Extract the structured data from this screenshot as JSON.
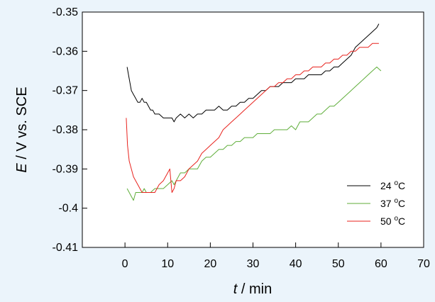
{
  "chart_data": {
    "type": "line",
    "xlabel": {
      "var": "t",
      "rest": " / min"
    },
    "ylabel": {
      "var": "E",
      "rest": " / V vs. SCE"
    },
    "xlim": [
      -10,
      70
    ],
    "ylim": [
      -0.41,
      -0.35
    ],
    "xticks": [
      0,
      10,
      20,
      30,
      40,
      50,
      60,
      70
    ],
    "yticks": [
      -0.41,
      -0.4,
      -0.39,
      -0.38,
      -0.37,
      -0.36,
      -0.35
    ],
    "grid": false,
    "legend_position": "lower-right",
    "series": [
      {
        "name": "24 °C",
        "name_num": "24",
        "name_unit": "C",
        "color": "#000000",
        "x": [
          0.5,
          1,
          1.5,
          2,
          2.5,
          3,
          3.5,
          4,
          4.5,
          5,
          5.5,
          6,
          6.5,
          7,
          8,
          9,
          10,
          11,
          11.5,
          12,
          13,
          14,
          15,
          16,
          17,
          18,
          19,
          20,
          21,
          22,
          23,
          24,
          25,
          26,
          27,
          28,
          29,
          30,
          31,
          32,
          33,
          34,
          35,
          36,
          37,
          38,
          39,
          40,
          41,
          42,
          43,
          44,
          45,
          46,
          47,
          48,
          49,
          50,
          51,
          52,
          53,
          54,
          55,
          56,
          57,
          58,
          59,
          59.5
        ],
        "values": [
          -0.364,
          -0.367,
          -0.37,
          -0.371,
          -0.372,
          -0.373,
          -0.373,
          -0.372,
          -0.373,
          -0.373,
          -0.374,
          -0.375,
          -0.375,
          -0.376,
          -0.376,
          -0.377,
          -0.377,
          -0.377,
          -0.378,
          -0.377,
          -0.376,
          -0.377,
          -0.376,
          -0.377,
          -0.376,
          -0.376,
          -0.375,
          -0.375,
          -0.375,
          -0.374,
          -0.375,
          -0.375,
          -0.374,
          -0.374,
          -0.373,
          -0.373,
          -0.372,
          -0.372,
          -0.371,
          -0.37,
          -0.37,
          -0.369,
          -0.369,
          -0.369,
          -0.368,
          -0.368,
          -0.368,
          -0.367,
          -0.367,
          -0.367,
          -0.366,
          -0.366,
          -0.366,
          -0.366,
          -0.365,
          -0.365,
          -0.364,
          -0.364,
          -0.363,
          -0.362,
          -0.361,
          -0.359,
          -0.358,
          -0.357,
          -0.356,
          -0.355,
          -0.354,
          -0.353
        ]
      },
      {
        "name": "37 °C",
        "name_num": "37",
        "name_unit": "C",
        "color": "#5fae3a",
        "x": [
          0.5,
          1,
          1.5,
          2,
          2.5,
          3,
          3.5,
          4,
          4.5,
          5,
          5.5,
          6,
          7,
          8,
          9,
          10,
          11,
          11.5,
          12,
          13,
          14,
          15,
          16,
          17,
          18,
          19,
          20,
          21,
          22,
          23,
          24,
          25,
          26,
          27,
          28,
          29,
          30,
          31,
          32,
          33,
          34,
          35,
          36,
          37,
          38,
          39,
          40,
          41,
          42,
          43,
          44,
          45,
          46,
          47,
          48,
          49,
          50,
          51,
          52,
          53,
          54,
          55,
          56,
          57,
          58,
          59,
          60
        ],
        "values": [
          -0.395,
          -0.396,
          -0.397,
          -0.398,
          -0.396,
          -0.396,
          -0.396,
          -0.396,
          -0.395,
          -0.396,
          -0.396,
          -0.396,
          -0.395,
          -0.395,
          -0.395,
          -0.394,
          -0.393,
          -0.394,
          -0.393,
          -0.391,
          -0.391,
          -0.39,
          -0.39,
          -0.39,
          -0.388,
          -0.387,
          -0.387,
          -0.386,
          -0.385,
          -0.385,
          -0.384,
          -0.384,
          -0.383,
          -0.383,
          -0.382,
          -0.382,
          -0.382,
          -0.381,
          -0.381,
          -0.381,
          -0.381,
          -0.38,
          -0.38,
          -0.38,
          -0.38,
          -0.379,
          -0.38,
          -0.378,
          -0.378,
          -0.378,
          -0.377,
          -0.376,
          -0.376,
          -0.375,
          -0.374,
          -0.374,
          -0.373,
          -0.372,
          -0.371,
          -0.37,
          -0.369,
          -0.368,
          -0.367,
          -0.366,
          -0.365,
          -0.364,
          -0.365
        ]
      },
      {
        "name": "50 °C",
        "name_num": "50",
        "name_unit": "C",
        "color": "#e8231e",
        "x": [
          0.3,
          0.6,
          1,
          1.5,
          2,
          3,
          4,
          5,
          6,
          7,
          8,
          9,
          10,
          10.5,
          11,
          11.5,
          12,
          13,
          14,
          15,
          16,
          17,
          18,
          19,
          20,
          21,
          22,
          23,
          24,
          25,
          26,
          27,
          28,
          29,
          30,
          31,
          32,
          33,
          34,
          35,
          36,
          37,
          38,
          39,
          40,
          41,
          42,
          43,
          44,
          45,
          46,
          47,
          48,
          49,
          50,
          51,
          52,
          53,
          54,
          55,
          56,
          57,
          58,
          59,
          59.5
        ],
        "values": [
          -0.377,
          -0.384,
          -0.388,
          -0.39,
          -0.392,
          -0.394,
          -0.396,
          -0.396,
          -0.396,
          -0.396,
          -0.394,
          -0.393,
          -0.391,
          -0.39,
          -0.396,
          -0.395,
          -0.393,
          -0.393,
          -0.392,
          -0.39,
          -0.389,
          -0.388,
          -0.386,
          -0.385,
          -0.384,
          -0.383,
          -0.382,
          -0.38,
          -0.379,
          -0.378,
          -0.377,
          -0.376,
          -0.375,
          -0.374,
          -0.373,
          -0.372,
          -0.371,
          -0.37,
          -0.369,
          -0.369,
          -0.368,
          -0.368,
          -0.367,
          -0.367,
          -0.366,
          -0.366,
          -0.365,
          -0.365,
          -0.364,
          -0.364,
          -0.364,
          -0.363,
          -0.363,
          -0.362,
          -0.362,
          -0.361,
          -0.361,
          -0.36,
          -0.36,
          -0.359,
          -0.359,
          -0.359,
          -0.358,
          -0.358,
          -0.358
        ]
      }
    ]
  }
}
